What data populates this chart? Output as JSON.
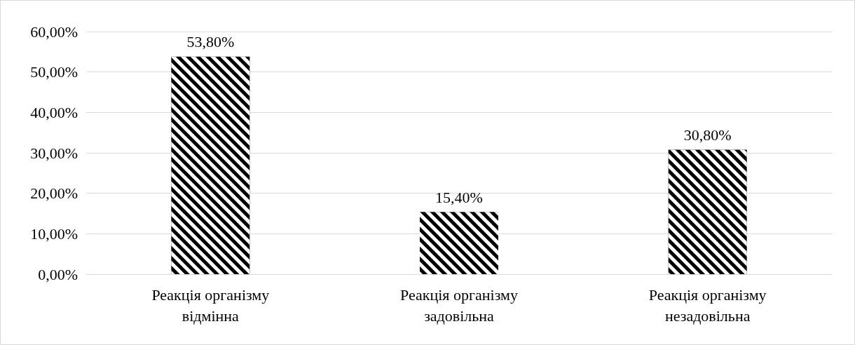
{
  "chart_data": {
    "type": "bar",
    "categories": [
      "Реакція організму відмінна",
      "Реакція організму задовільна",
      "Реакція організму незадовільна"
    ],
    "values": [
      53.8,
      15.4,
      30.8
    ],
    "color": "#000000",
    "value_labels": [
      "53,80%",
      "15,40%",
      "30,80%"
    ],
    "ylim": [
      0,
      60
    ],
    "yticks": [
      {
        "value": 0,
        "label": "0,00%"
      },
      {
        "value": 10,
        "label": "10,00%"
      },
      {
        "value": 20,
        "label": "20,00%"
      },
      {
        "value": 30,
        "label": "30,00%"
      },
      {
        "value": 40,
        "label": "40,00%"
      },
      {
        "value": 50,
        "label": "50,00%"
      },
      {
        "value": 60,
        "label": "60,00%"
      }
    ],
    "grid": "y"
  }
}
